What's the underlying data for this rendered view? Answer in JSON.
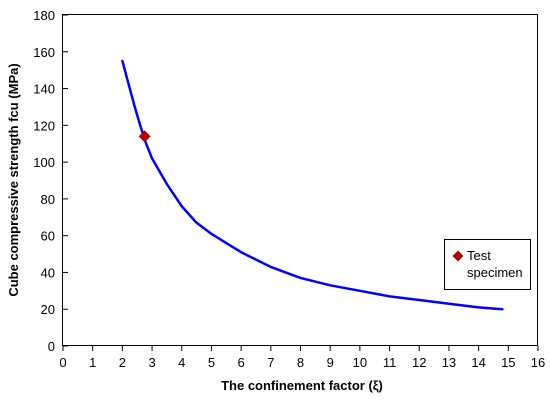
{
  "chart_data": {
    "type": "line",
    "title": "",
    "xlabel": "The confinement factor (ξ)",
    "ylabel": "Cube compressive strength fcu (MPa)",
    "xlim": [
      0,
      16
    ],
    "ylim": [
      0,
      180
    ],
    "xticks": [
      "0",
      "1",
      "2",
      "3",
      "4",
      "5",
      "6",
      "7",
      "8",
      "9",
      "10",
      "11",
      "12",
      "13",
      "14",
      "15",
      "16"
    ],
    "yticks": [
      "0",
      "20",
      "40",
      "60",
      "80",
      "100",
      "120",
      "140",
      "160",
      "180"
    ],
    "grid": false,
    "legend_position": "right",
    "series": [
      {
        "type": "line",
        "color": "#0000ff",
        "points": [
          [
            2.0,
            155
          ],
          [
            2.2,
            143
          ],
          [
            2.4,
            131
          ],
          [
            2.6,
            120
          ],
          [
            2.8,
            110
          ],
          [
            3.0,
            102
          ],
          [
            3.5,
            88
          ],
          [
            4.0,
            76
          ],
          [
            4.5,
            67
          ],
          [
            5.0,
            61
          ],
          [
            5.5,
            56
          ],
          [
            6.0,
            51
          ],
          [
            6.5,
            47
          ],
          [
            7.0,
            43
          ],
          [
            7.5,
            40
          ],
          [
            8.0,
            37
          ],
          [
            9.0,
            33
          ],
          [
            10.0,
            30
          ],
          [
            11.0,
            27
          ],
          [
            12.0,
            25
          ],
          [
            13.0,
            23
          ],
          [
            14.0,
            21
          ],
          [
            14.8,
            20
          ]
        ]
      },
      {
        "name": "Test specimen",
        "type": "scatter",
        "marker": "diamond",
        "color": "#c00000",
        "points": [
          [
            2.75,
            114
          ]
        ]
      }
    ],
    "legend": {
      "items": [
        {
          "label_line1": "Test",
          "label_line2": "specimen",
          "marker": "diamond",
          "color": "#c00000"
        }
      ]
    }
  }
}
